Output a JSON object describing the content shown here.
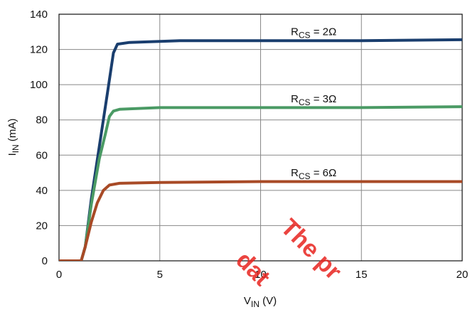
{
  "chart_data": {
    "type": "line",
    "xlabel": {
      "main": "V",
      "sub": "IN",
      "unit": " (V)"
    },
    "ylabel": {
      "main": "I",
      "sub": "IN",
      "unit": " (mA)"
    },
    "xlim": [
      0,
      20
    ],
    "ylim": [
      0,
      140
    ],
    "xticks": [
      0,
      5,
      10,
      15,
      20
    ],
    "yticks": [
      0,
      20,
      40,
      60,
      80,
      100,
      120,
      140
    ],
    "grid": true,
    "series": [
      {
        "label": {
          "main": "R",
          "sub": "CS",
          "rest": " = 2Ω"
        },
        "color": "#1a3e6e",
        "x": [
          0,
          1.1,
          1.3,
          1.6,
          2.0,
          2.4,
          2.7,
          2.9,
          3.5,
          6,
          10,
          15,
          20
        ],
        "y": [
          0,
          0,
          8,
          35,
          65,
          95,
          118,
          123,
          124,
          125,
          125,
          125,
          125.5
        ]
      },
      {
        "label": {
          "main": "R",
          "sub": "CS",
          "rest": " = 3Ω"
        },
        "color": "#4a9a64",
        "x": [
          0,
          1.1,
          1.3,
          1.6,
          2.0,
          2.3,
          2.5,
          2.7,
          3.0,
          5,
          10,
          15,
          20
        ],
        "y": [
          0,
          0,
          8,
          32,
          58,
          72,
          82,
          85,
          86,
          87,
          87,
          87,
          87.5
        ]
      },
      {
        "label": {
          "main": "R",
          "sub": "CS",
          "rest": " = 6Ω"
        },
        "color": "#a84a26",
        "x": [
          0,
          1.1,
          1.3,
          1.6,
          1.9,
          2.2,
          2.5,
          3.0,
          5,
          10,
          15,
          20
        ],
        "y": [
          0,
          0,
          8,
          22,
          33,
          40,
          43,
          44,
          44.5,
          45,
          45,
          45
        ]
      }
    ],
    "label_positions": [
      {
        "x": 11.5,
        "y": 128
      },
      {
        "x": 11.5,
        "y": 90
      },
      {
        "x": 11.5,
        "y": 48
      }
    ]
  },
  "watermark": {
    "lines": [
      "The pr",
      "dat"
    ],
    "color": "#e8231f"
  }
}
